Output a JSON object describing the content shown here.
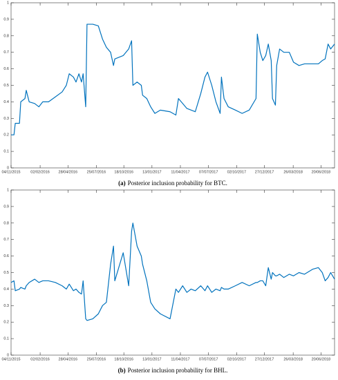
{
  "chart_data": [
    {
      "type": "line",
      "caption_label": "(a)",
      "caption_text": "Posterior inclusion probability for BTC.",
      "color": "#0072bd",
      "x": [
        "2015-11-04",
        "2015-11-13",
        "2015-11-17",
        "2015-11-30",
        "2015-12-04",
        "2015-12-17",
        "2015-12-21",
        "2015-12-30",
        "2016-01-16",
        "2016-01-29",
        "2016-02-10",
        "2016-02-28",
        "2016-03-20",
        "2016-04-10",
        "2016-04-23",
        "2016-05-02",
        "2016-05-15",
        "2016-05-23",
        "2016-06-01",
        "2016-06-09",
        "2016-06-14",
        "2016-06-22",
        "2016-06-26",
        "2016-07-14",
        "2016-07-31",
        "2016-08-13",
        "2016-08-25",
        "2016-09-07",
        "2016-09-16",
        "2016-09-20",
        "2016-10-16",
        "2016-11-02",
        "2016-11-11",
        "2016-11-15",
        "2016-11-28",
        "2016-12-11",
        "2016-12-15",
        "2016-12-28",
        "2017-01-09",
        "2017-01-22",
        "2017-02-08",
        "2017-03-10",
        "2017-03-28",
        "2017-04-05",
        "2017-04-18",
        "2017-05-01",
        "2017-05-14",
        "2017-05-27",
        "2017-06-13",
        "2017-06-26",
        "2017-07-04",
        "2017-07-17",
        "2017-07-30",
        "2017-08-12",
        "2017-08-16",
        "2017-08-24",
        "2017-09-06",
        "2017-09-28",
        "2017-10-19",
        "2017-11-10",
        "2017-12-01",
        "2017-12-05",
        "2017-12-14",
        "2017-12-22",
        "2017-12-31",
        "2018-01-08",
        "2018-01-17",
        "2018-01-21",
        "2018-01-30",
        "2018-02-03",
        "2018-02-12",
        "2018-02-25",
        "2018-03-14",
        "2018-03-27",
        "2018-04-13",
        "2018-04-30",
        "2018-05-25",
        "2018-06-12",
        "2018-06-24",
        "2018-07-03",
        "2018-07-12",
        "2018-07-20",
        "2018-08-01"
      ],
      "values": [
        0.2,
        0.2,
        0.27,
        0.27,
        0.4,
        0.42,
        0.47,
        0.4,
        0.39,
        0.37,
        0.4,
        0.4,
        0.43,
        0.46,
        0.5,
        0.57,
        0.55,
        0.52,
        0.57,
        0.52,
        0.57,
        0.37,
        0.87,
        0.87,
        0.86,
        0.78,
        0.73,
        0.7,
        0.62,
        0.66,
        0.68,
        0.72,
        0.77,
        0.5,
        0.52,
        0.5,
        0.44,
        0.42,
        0.37,
        0.33,
        0.35,
        0.34,
        0.32,
        0.42,
        0.39,
        0.36,
        0.35,
        0.34,
        0.45,
        0.55,
        0.58,
        0.5,
        0.4,
        0.33,
        0.55,
        0.42,
        0.37,
        0.35,
        0.33,
        0.35,
        0.42,
        0.81,
        0.7,
        0.65,
        0.68,
        0.75,
        0.65,
        0.42,
        0.38,
        0.62,
        0.72,
        0.7,
        0.7,
        0.64,
        0.62,
        0.63,
        0.63,
        0.63,
        0.65,
        0.66,
        0.75,
        0.72,
        0.75
      ],
      "xlim": [
        "2015-11-04",
        "2018-08-01"
      ],
      "xticks": [
        {
          "value": "2015-11-04",
          "label": "04/11/2015"
        },
        {
          "value": "2016-02-02",
          "label": "02/02/2016"
        },
        {
          "value": "2016-04-28",
          "label": "28/04/2016"
        },
        {
          "value": "2016-07-25",
          "label": "25/07/2016"
        },
        {
          "value": "2016-10-18",
          "label": "18/10/2016"
        },
        {
          "value": "2017-01-13",
          "label": "13/01/2017"
        },
        {
          "value": "2017-04-11",
          "label": "11/04/2017"
        },
        {
          "value": "2017-07-07",
          "label": "07/07/2017"
        },
        {
          "value": "2017-10-02",
          "label": "02/10/2017"
        },
        {
          "value": "2017-12-27",
          "label": "27/12/2017"
        },
        {
          "value": "2018-03-26",
          "label": "26/03/2018"
        },
        {
          "value": "2018-06-20",
          "label": "20/06/2018"
        }
      ],
      "ylim": [
        0,
        1
      ],
      "yticks": [
        0,
        0.1,
        0.2,
        0.3,
        0.4,
        0.5,
        0.6,
        0.7,
        0.8,
        0.9,
        1
      ]
    },
    {
      "type": "line",
      "caption_label": "(b)",
      "caption_text": "Posterior inclusion probability for BHL.",
      "color": "#0072bd",
      "x": [
        "2015-11-04",
        "2015-11-13",
        "2015-11-17",
        "2015-11-30",
        "2015-12-04",
        "2015-12-17",
        "2015-12-21",
        "2015-12-30",
        "2016-01-16",
        "2016-01-29",
        "2016-02-10",
        "2016-02-28",
        "2016-03-20",
        "2016-04-10",
        "2016-04-23",
        "2016-05-02",
        "2016-05-15",
        "2016-05-23",
        "2016-06-01",
        "2016-06-09",
        "2016-06-14",
        "2016-06-22",
        "2016-06-26",
        "2016-07-14",
        "2016-07-31",
        "2016-08-13",
        "2016-08-25",
        "2016-09-07",
        "2016-09-16",
        "2016-09-20",
        "2016-10-16",
        "2016-11-02",
        "2016-11-11",
        "2016-11-15",
        "2016-11-28",
        "2016-12-11",
        "2016-12-15",
        "2016-12-28",
        "2017-01-09",
        "2017-01-22",
        "2017-02-08",
        "2017-03-10",
        "2017-03-28",
        "2017-04-05",
        "2017-04-18",
        "2017-05-01",
        "2017-05-14",
        "2017-05-27",
        "2017-06-13",
        "2017-06-26",
        "2017-07-04",
        "2017-07-17",
        "2017-07-30",
        "2017-08-12",
        "2017-08-16",
        "2017-08-24",
        "2017-09-06",
        "2017-09-28",
        "2017-10-19",
        "2017-11-10",
        "2017-12-01",
        "2017-12-05",
        "2017-12-14",
        "2017-12-22",
        "2017-12-31",
        "2018-01-08",
        "2018-01-17",
        "2018-01-21",
        "2018-01-30",
        "2018-02-03",
        "2018-02-12",
        "2018-02-25",
        "2018-03-14",
        "2018-03-27",
        "2018-04-13",
        "2018-04-30",
        "2018-05-25",
        "2018-06-12",
        "2018-06-24",
        "2018-07-03",
        "2018-07-12",
        "2018-07-20",
        "2018-08-01"
      ],
      "values": [
        0.44,
        0.45,
        0.39,
        0.4,
        0.41,
        0.4,
        0.42,
        0.44,
        0.46,
        0.44,
        0.45,
        0.45,
        0.44,
        0.42,
        0.4,
        0.43,
        0.39,
        0.4,
        0.38,
        0.37,
        0.45,
        0.22,
        0.21,
        0.22,
        0.25,
        0.3,
        0.32,
        0.55,
        0.66,
        0.45,
        0.62,
        0.42,
        0.75,
        0.8,
        0.66,
        0.6,
        0.55,
        0.45,
        0.32,
        0.28,
        0.25,
        0.22,
        0.4,
        0.38,
        0.42,
        0.38,
        0.4,
        0.39,
        0.42,
        0.39,
        0.42,
        0.38,
        0.4,
        0.39,
        0.41,
        0.4,
        0.4,
        0.42,
        0.44,
        0.42,
        0.44,
        0.44,
        0.45,
        0.45,
        0.42,
        0.53,
        0.46,
        0.5,
        0.48,
        0.48,
        0.49,
        0.47,
        0.49,
        0.48,
        0.5,
        0.49,
        0.52,
        0.53,
        0.5,
        0.45,
        0.47,
        0.5,
        0.46
      ],
      "xlim": [
        "2015-11-04",
        "2018-08-01"
      ],
      "xticks": [
        {
          "value": "2015-11-04",
          "label": "04/11/2015"
        },
        {
          "value": "2016-02-02",
          "label": "02/02/2016"
        },
        {
          "value": "2016-04-28",
          "label": "28/04/2016"
        },
        {
          "value": "2016-07-25",
          "label": "25/07/2016"
        },
        {
          "value": "2016-10-18",
          "label": "18/10/2016"
        },
        {
          "value": "2017-01-13",
          "label": "13/01/2017"
        },
        {
          "value": "2017-04-11",
          "label": "11/04/2017"
        },
        {
          "value": "2017-07-07",
          "label": "07/07/2017"
        },
        {
          "value": "2017-10-02",
          "label": "02/10/2017"
        },
        {
          "value": "2017-12-27",
          "label": "27/12/2017"
        },
        {
          "value": "2018-03-26",
          "label": "26/03/2018"
        },
        {
          "value": "2018-06-20",
          "label": "20/06/2018"
        }
      ],
      "ylim": [
        0,
        1
      ],
      "yticks": [
        0,
        0.1,
        0.2,
        0.3,
        0.4,
        0.5,
        0.6,
        0.7,
        0.8,
        0.9,
        1
      ]
    }
  ]
}
